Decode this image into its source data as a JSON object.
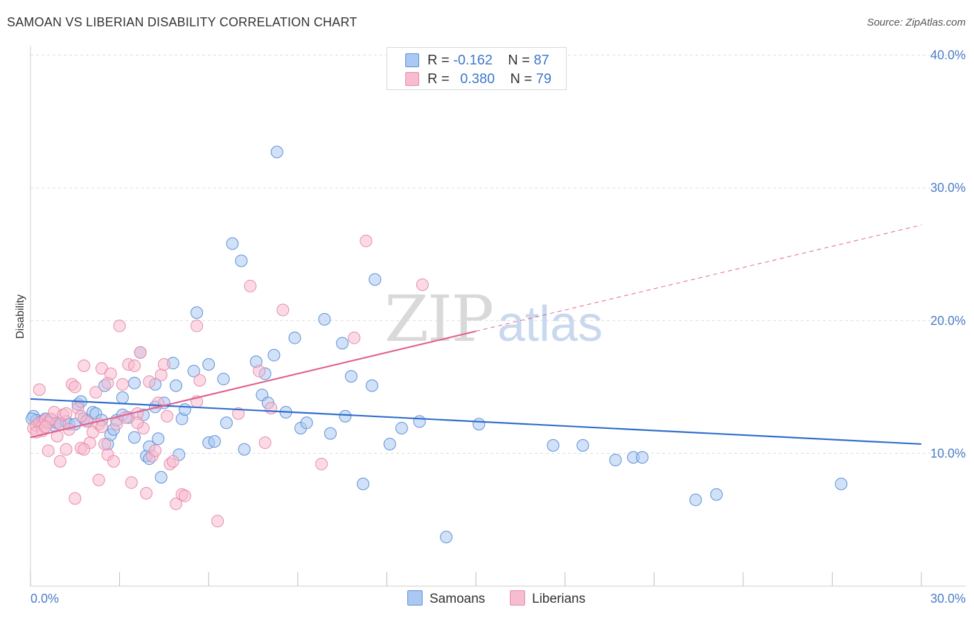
{
  "title": "SAMOAN VS LIBERIAN DISABILITY CORRELATION CHART",
  "source": "Source: ZipAtlas.com",
  "watermark": {
    "zip": "ZIP",
    "atlas": "atlas"
  },
  "legend": {
    "rows": [
      {
        "r_label": "R =",
        "r_value": "-0.162",
        "n_label": "N =",
        "n_value": "87",
        "color": "#a9c8f2"
      },
      {
        "r_label": "R =",
        "r_value": "0.380",
        "n_label": "N =",
        "n_value": "79",
        "color": "#f7bcd0"
      }
    ]
  },
  "bottom_legend": [
    {
      "label": "Samoans",
      "color": "#a9c8f2"
    },
    {
      "label": "Liberians",
      "color": "#f7bcd0"
    }
  ],
  "chart_data": {
    "type": "scatter",
    "title": "SAMOAN VS LIBERIAN DISABILITY CORRELATION CHART",
    "xlabel": "",
    "ylabel": "Disability",
    "xlim": [
      0,
      30
    ],
    "ylim": [
      0,
      40
    ],
    "x_tick_labels": [
      "0.0%",
      "30.0%"
    ],
    "y_tick_labels": [
      "10.0%",
      "20.0%",
      "30.0%",
      "40.0%"
    ],
    "y_ticks": [
      10,
      20,
      30,
      40
    ],
    "grid": true,
    "legend_position": "top-center",
    "series": [
      {
        "name": "Samoans",
        "color": "#5b8fd6",
        "fill": "#a9c8f2",
        "trend": {
          "x": [
            0,
            30
          ],
          "y": [
            14.1,
            10.7
          ],
          "color": "#2f6ccc",
          "dashed_from": null
        },
        "points": [
          [
            0.1,
            12.8
          ],
          [
            0.2,
            12.5
          ],
          [
            0.3,
            12.2
          ],
          [
            0.4,
            12.4
          ],
          [
            0.5,
            12.6
          ],
          [
            0.6,
            12.3
          ],
          [
            0.7,
            12.5
          ],
          [
            0.8,
            12.1
          ],
          [
            0.9,
            12.3
          ],
          [
            1.0,
            12.2
          ],
          [
            1.2,
            12.4
          ],
          [
            1.3,
            12.2
          ],
          [
            1.5,
            12.2
          ],
          [
            1.6,
            13.7
          ],
          [
            1.7,
            13.9
          ],
          [
            1.8,
            12.6
          ],
          [
            1.9,
            12.5
          ],
          [
            2.1,
            13.1
          ],
          [
            2.2,
            13.0
          ],
          [
            2.5,
            15.1
          ],
          [
            2.6,
            10.7
          ],
          [
            2.7,
            11.4
          ],
          [
            2.8,
            11.8
          ],
          [
            2.9,
            12.5
          ],
          [
            3.1,
            12.9
          ],
          [
            3.1,
            14.2
          ],
          [
            3.3,
            12.7
          ],
          [
            3.5,
            15.3
          ],
          [
            3.5,
            11.2
          ],
          [
            3.7,
            17.6
          ],
          [
            3.8,
            12.9
          ],
          [
            3.9,
            9.8
          ],
          [
            4.0,
            9.6
          ],
          [
            4.0,
            10.5
          ],
          [
            4.2,
            13.5
          ],
          [
            4.2,
            15.2
          ],
          [
            4.3,
            11.1
          ],
          [
            4.4,
            8.2
          ],
          [
            4.5,
            13.8
          ],
          [
            4.8,
            16.8
          ],
          [
            4.9,
            15.1
          ],
          [
            5.0,
            9.9
          ],
          [
            5.1,
            12.6
          ],
          [
            5.2,
            13.3
          ],
          [
            5.5,
            16.2
          ],
          [
            5.6,
            20.6
          ],
          [
            6.0,
            10.8
          ],
          [
            6.0,
            16.7
          ],
          [
            6.2,
            10.9
          ],
          [
            6.5,
            15.6
          ],
          [
            6.6,
            12.3
          ],
          [
            6.8,
            25.8
          ],
          [
            7.1,
            24.5
          ],
          [
            7.2,
            10.3
          ],
          [
            7.6,
            16.9
          ],
          [
            7.8,
            14.4
          ],
          [
            7.9,
            16.0
          ],
          [
            8.0,
            13.8
          ],
          [
            8.2,
            17.4
          ],
          [
            8.3,
            32.7
          ],
          [
            8.6,
            13.1
          ],
          [
            8.9,
            18.7
          ],
          [
            9.1,
            11.9
          ],
          [
            9.3,
            12.3
          ],
          [
            9.9,
            20.1
          ],
          [
            10.1,
            11.5
          ],
          [
            10.5,
            18.3
          ],
          [
            10.6,
            12.8
          ],
          [
            10.8,
            15.8
          ],
          [
            11.2,
            7.7
          ],
          [
            11.5,
            15.1
          ],
          [
            11.6,
            23.1
          ],
          [
            12.1,
            10.7
          ],
          [
            12.5,
            11.9
          ],
          [
            13.1,
            12.4
          ],
          [
            14.0,
            3.7
          ],
          [
            15.1,
            12.2
          ],
          [
            17.6,
            10.6
          ],
          [
            18.6,
            10.6
          ],
          [
            19.7,
            9.5
          ],
          [
            20.3,
            9.7
          ],
          [
            20.6,
            9.7
          ],
          [
            22.4,
            6.5
          ],
          [
            23.1,
            6.9
          ],
          [
            27.3,
            7.7
          ],
          [
            0.05,
            12.6
          ],
          [
            2.4,
            12.5
          ]
        ]
      },
      {
        "name": "Liberians",
        "color": "#e88aa8",
        "fill": "#f7bcd0",
        "trend": {
          "x": [
            0,
            15
          ],
          "y": [
            11.2,
            19.2
          ],
          "dashed_x": [
            15,
            30
          ],
          "dashed_y": [
            19.2,
            27.2
          ],
          "color": "#e0638f"
        },
        "points": [
          [
            0.1,
            11.9
          ],
          [
            0.2,
            12.1
          ],
          [
            0.3,
            12.3
          ],
          [
            0.4,
            12.1
          ],
          [
            0.4,
            11.7
          ],
          [
            0.5,
            12.5
          ],
          [
            0.6,
            12.3
          ],
          [
            0.7,
            12.6
          ],
          [
            0.8,
            13.1
          ],
          [
            0.9,
            11.3
          ],
          [
            1.0,
            12.2
          ],
          [
            1.1,
            12.9
          ],
          [
            1.2,
            13.0
          ],
          [
            1.3,
            11.8
          ],
          [
            1.4,
            15.2
          ],
          [
            1.5,
            15.0
          ],
          [
            1.6,
            13.4
          ],
          [
            1.7,
            10.4
          ],
          [
            1.8,
            16.6
          ],
          [
            1.9,
            12.4
          ],
          [
            2.0,
            10.8
          ],
          [
            2.1,
            11.6
          ],
          [
            2.2,
            14.6
          ],
          [
            2.3,
            12.2
          ],
          [
            2.4,
            12.0
          ],
          [
            2.4,
            16.4
          ],
          [
            2.5,
            10.7
          ],
          [
            2.6,
            15.3
          ],
          [
            2.6,
            9.9
          ],
          [
            2.7,
            16.0
          ],
          [
            2.8,
            9.4
          ],
          [
            2.9,
            12.2
          ],
          [
            3.0,
            19.6
          ],
          [
            3.1,
            15.2
          ],
          [
            3.2,
            12.7
          ],
          [
            3.3,
            16.7
          ],
          [
            3.4,
            7.8
          ],
          [
            3.5,
            16.6
          ],
          [
            3.6,
            13.0
          ],
          [
            3.7,
            17.6
          ],
          [
            3.8,
            11.9
          ],
          [
            3.9,
            7.0
          ],
          [
            4.0,
            15.4
          ],
          [
            4.1,
            9.8
          ],
          [
            4.2,
            10.2
          ],
          [
            4.3,
            13.8
          ],
          [
            4.4,
            15.9
          ],
          [
            4.5,
            16.7
          ],
          [
            4.6,
            12.8
          ],
          [
            4.7,
            9.2
          ],
          [
            4.8,
            9.4
          ],
          [
            4.9,
            6.2
          ],
          [
            5.1,
            6.9
          ],
          [
            5.2,
            6.8
          ],
          [
            5.6,
            13.9
          ],
          [
            5.6,
            19.6
          ],
          [
            5.7,
            15.5
          ],
          [
            6.3,
            4.9
          ],
          [
            7.0,
            13.0
          ],
          [
            7.4,
            22.6
          ],
          [
            7.7,
            16.2
          ],
          [
            7.9,
            10.8
          ],
          [
            8.1,
            13.4
          ],
          [
            8.5,
            20.8
          ],
          [
            9.8,
            9.2
          ],
          [
            10.9,
            18.7
          ],
          [
            11.3,
            26.0
          ],
          [
            13.2,
            22.7
          ],
          [
            0.3,
            14.8
          ],
          [
            0.6,
            10.2
          ],
          [
            1.0,
            9.4
          ],
          [
            1.2,
            10.3
          ],
          [
            1.5,
            6.6
          ],
          [
            1.8,
            10.3
          ],
          [
            2.3,
            8.0
          ],
          [
            0.2,
            11.6
          ],
          [
            0.5,
            12.0
          ],
          [
            1.7,
            12.8
          ],
          [
            3.6,
            12.3
          ]
        ]
      }
    ]
  }
}
